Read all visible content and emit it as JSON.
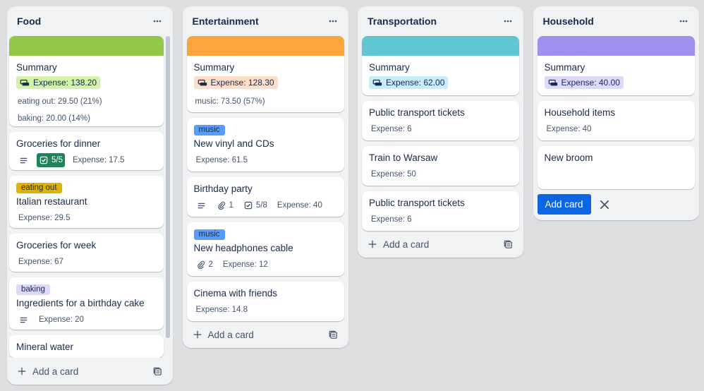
{
  "lists": [
    {
      "title": "Food",
      "cover_color": "#94c748",
      "scrollable": true,
      "summary": {
        "title": "Summary",
        "expense": "Expense: 138.20",
        "badge_color": "#d3f1a7",
        "lines": [
          "eating out: 29.50 (21%)",
          "baking: 20.00 (14%)"
        ]
      },
      "cards": [
        {
          "title": "Groceries for dinner",
          "has_description": true,
          "checklist": "5/5",
          "checklist_complete": true,
          "expense": "Expense: 17.5"
        },
        {
          "label": "eating out",
          "label_color": "#e2b203",
          "title": "Italian restaurant",
          "expense": "Expense: 29.5"
        },
        {
          "title": "Groceries for week",
          "expense": "Expense: 67"
        },
        {
          "label": "baking",
          "label_color": "#dfd8fd",
          "title": "Ingredients for a birthday cake",
          "has_description": true,
          "expense": "Expense: 20"
        },
        {
          "title": "Mineral water"
        }
      ],
      "add_card": "Add a card"
    },
    {
      "title": "Entertainment",
      "cover_color": "#faa53d",
      "summary": {
        "title": "Summary",
        "expense": "Expense: 128.30",
        "badge_color": "#fedec8",
        "lines": [
          "music: 73.50 (57%)"
        ]
      },
      "cards": [
        {
          "label": "music",
          "label_color": "#579dff",
          "title": "New vinyl and CDs",
          "expense": "Expense: 61.5"
        },
        {
          "title": "Birthday party",
          "has_description": true,
          "attachments": 1,
          "checklist": "5/8",
          "expense": "Expense: 40"
        },
        {
          "label": "music",
          "label_color": "#579dff",
          "title": "New headphones cable",
          "attachments": 2,
          "expense": "Expense: 12"
        },
        {
          "title": "Cinema with friends",
          "expense": "Expense: 14.8"
        }
      ],
      "add_card": "Add a card"
    },
    {
      "title": "Transportation",
      "cover_color": "#60c6d2",
      "summary": {
        "title": "Summary",
        "expense": "Expense: 62.00",
        "badge_color": "#c6edfb",
        "lines": []
      },
      "cards": [
        {
          "title": "Public transport tickets",
          "expense": "Expense: 6"
        },
        {
          "title": "Train to Warsaw",
          "expense": "Expense: 50"
        },
        {
          "title": "Public transport tickets",
          "expense": "Expense: 6"
        }
      ],
      "add_card": "Add a card"
    },
    {
      "title": "Household",
      "cover_color": "#9f8fef",
      "summary": {
        "title": "Summary",
        "expense": "Expense: 40.00",
        "badge_color": "#dfd8fd",
        "lines": []
      },
      "cards": [
        {
          "title": "Household items",
          "expense": "Expense: 40"
        }
      ],
      "composer": {
        "text": "New broom",
        "button": "Add card"
      }
    }
  ]
}
